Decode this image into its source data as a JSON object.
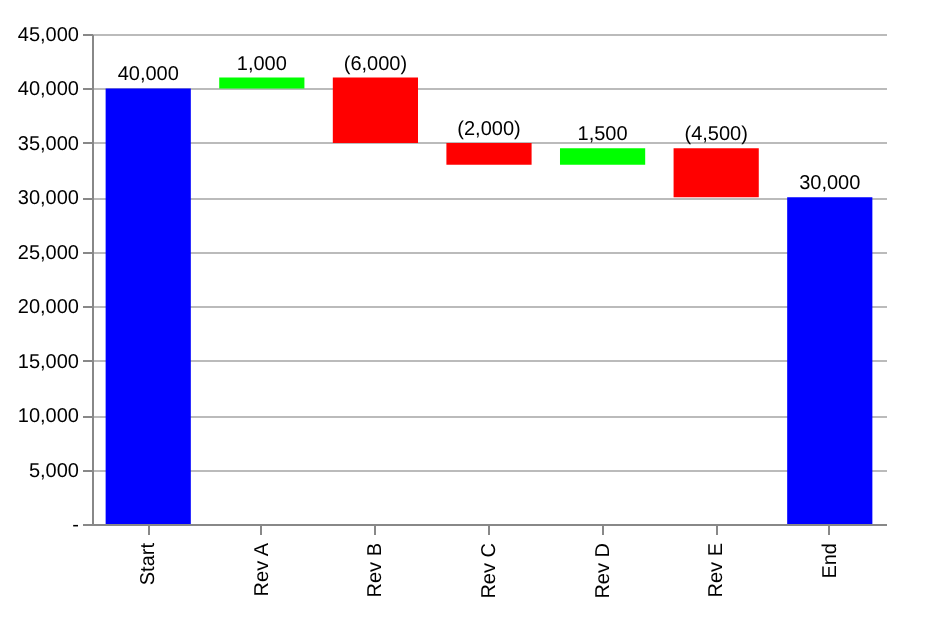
{
  "chart_data": {
    "type": "bar",
    "categories": [
      "Start",
      "Rev A",
      "Rev B",
      "Rev C",
      "Rev D",
      "Rev E",
      "End"
    ],
    "values": [
      40000,
      1000,
      -6000,
      -2000,
      1500,
      -4500,
      30000
    ],
    "base": [
      0,
      40000,
      41000,
      35000,
      33000,
      34500,
      0
    ],
    "colors": [
      "#0000ff",
      "#00ff00",
      "#ff0000",
      "#ff0000",
      "#00ff00",
      "#ff0000",
      "#0000ff"
    ],
    "value_labels": [
      "40,000",
      "1,000",
      "(6,000)",
      "(2,000)",
      "1,500",
      "(4,500)",
      "30,000"
    ],
    "ylim": [
      0,
      45000
    ],
    "yticks": [
      {
        "value": 0,
        "label": "-"
      },
      {
        "value": 5000,
        "label": "5,000"
      },
      {
        "value": 10000,
        "label": "10,000"
      },
      {
        "value": 15000,
        "label": "15,000"
      },
      {
        "value": 20000,
        "label": "20,000"
      },
      {
        "value": 25000,
        "label": "25,000"
      },
      {
        "value": 30000,
        "label": "30,000"
      },
      {
        "value": 35000,
        "label": "35,000"
      },
      {
        "value": 40000,
        "label": "40,000"
      },
      {
        "value": 45000,
        "label": "45,000"
      }
    ],
    "grid": "y"
  }
}
